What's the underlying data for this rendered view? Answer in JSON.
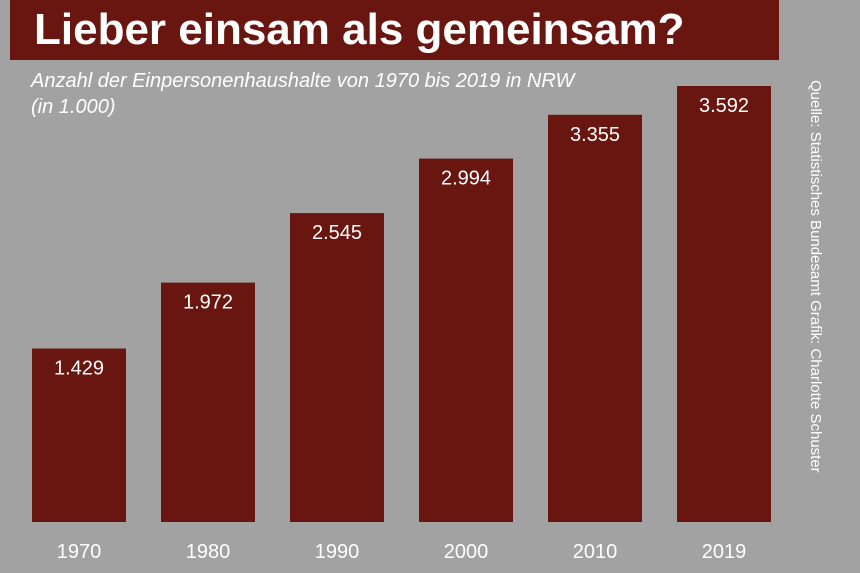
{
  "header": {
    "title": "Lieber einsam als gemeinsam?",
    "subtitle_line1": "Anzahl der Einpersonenhaushalte von 1970 bis 2019 in NRW",
    "subtitle_line2": "(in 1.000)"
  },
  "credit": {
    "text": "Quelle: Statistisches Bundesamt   Grafik: Charlotte Schuster"
  },
  "colors": {
    "background": "#a2a2a2",
    "bar": "#6a1610",
    "text": "#ffffff"
  },
  "chart_data": {
    "type": "bar",
    "title": "Lieber einsam als gemeinsam?",
    "subtitle": "Anzahl der Einpersonenhaushalte von 1970 bis 2019 in NRW (in 1.000)",
    "categories": [
      "1970",
      "1980",
      "1990",
      "2000",
      "2010",
      "2019"
    ],
    "values": [
      1429,
      1972,
      2545,
      2994,
      3355,
      3592
    ],
    "value_labels": [
      "1.429",
      "1.972",
      "2.545",
      "2.994",
      "3.355",
      "3.592"
    ],
    "xlabel": "",
    "ylabel": "",
    "ylim": [
      0,
      3592
    ],
    "grid": false,
    "legend": "none",
    "data_labels": "inside-top"
  }
}
